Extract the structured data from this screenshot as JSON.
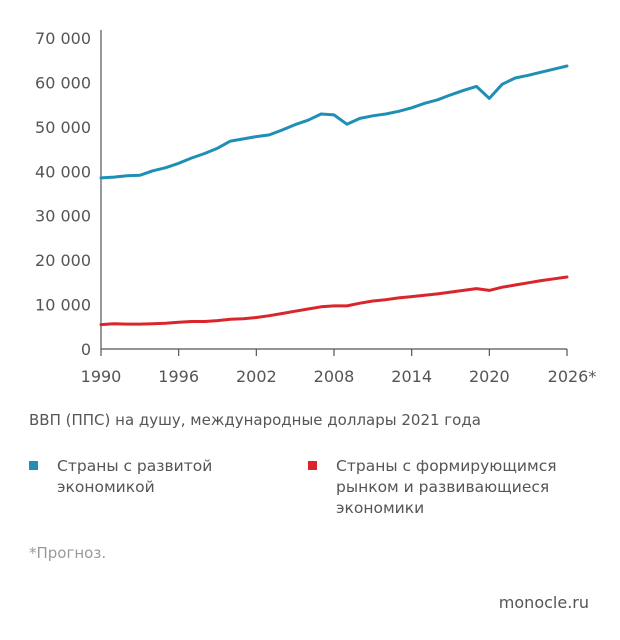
{
  "chart_data": {
    "type": "line",
    "title": "",
    "xlabel": "",
    "ylabel": "",
    "x": [
      1990,
      1991,
      1992,
      1993,
      1994,
      1995,
      1996,
      1997,
      1998,
      1999,
      2000,
      2001,
      2002,
      2003,
      2004,
      2005,
      2006,
      2007,
      2008,
      2009,
      2010,
      2011,
      2012,
      2013,
      2014,
      2015,
      2016,
      2017,
      2018,
      2019,
      2020,
      2021,
      2022,
      2023,
      2024,
      2025,
      2026
    ],
    "xlim": [
      1990,
      2026
    ],
    "ylim": [
      0,
      70000
    ],
    "x_ticks": [
      1990,
      1996,
      2002,
      2008,
      2014,
      2020,
      2026
    ],
    "x_tick_labels": [
      "1990",
      "1996",
      "2002",
      "2008",
      "2014",
      "2020",
      "2026*"
    ],
    "y_ticks": [
      0,
      10000,
      20000,
      30000,
      40000,
      50000,
      60000,
      70000
    ],
    "y_tick_labels": [
      "0",
      "10 000",
      "20 000",
      "30 000",
      "40 000",
      "50 000",
      "60 000",
      "70 000"
    ],
    "grid": false,
    "series": [
      {
        "name": "Страны с развитой экономикой",
        "color": "#1f8fb5",
        "values": [
          38500,
          38700,
          39000,
          39100,
          40100,
          40800,
          41800,
          43000,
          44000,
          45200,
          46800,
          47300,
          47800,
          48200,
          49300,
          50500,
          51500,
          52900,
          52700,
          50600,
          51900,
          52500,
          52900,
          53500,
          54300,
          55300,
          56100,
          57200,
          58200,
          59100,
          56400,
          59600,
          61000,
          61600,
          62300,
          63000,
          63700
        ]
      },
      {
        "name": "Страны с формирующимся рынком и развивающиеся экономики",
        "color": "#d9262c",
        "values": [
          5500,
          5700,
          5600,
          5600,
          5700,
          5800,
          6000,
          6200,
          6200,
          6400,
          6700,
          6800,
          7100,
          7500,
          8000,
          8500,
          9000,
          9500,
          9700,
          9700,
          10300,
          10800,
          11100,
          11500,
          11800,
          12100,
          12400,
          12800,
          13200,
          13600,
          13200,
          13900,
          14400,
          14900,
          15400,
          15800,
          16200
        ]
      }
    ],
    "legend_placement": "bottom"
  },
  "caption": "ВВП (ППС) на душу, международные доллары 2021 года",
  "legend": {
    "item1_label": "Страны с развитой экономикой",
    "item2_label": "Страны с формирующимся рынком и развивающиеся экономики"
  },
  "footnote": "*Прогноз.",
  "source": "monocle.ru"
}
